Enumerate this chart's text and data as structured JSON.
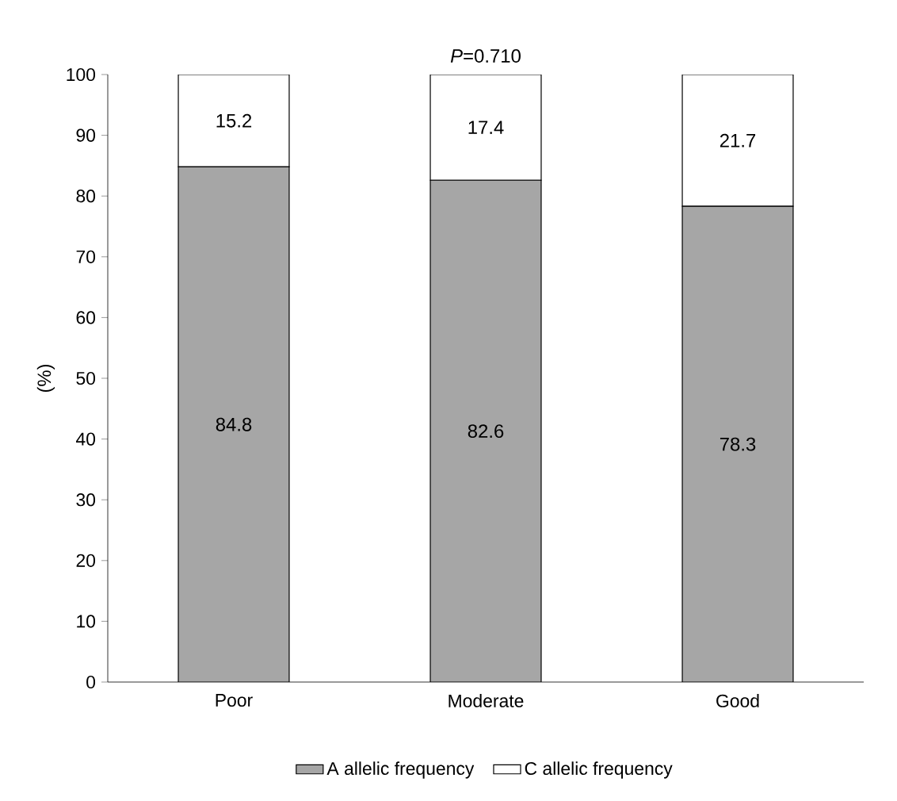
{
  "chart_data": {
    "type": "bar",
    "stacked": true,
    "title": "*P*=0.710",
    "ylabel": "(%)",
    "categories": [
      "Poor",
      "Moderate",
      "Good"
    ],
    "series": [
      {
        "name": "A allelic frequency",
        "color": "#a6a6a6",
        "values": [
          84.8,
          82.6,
          78.3
        ]
      },
      {
        "name": "C allelic frequency",
        "color": "#ffffff",
        "values": [
          15.2,
          17.4,
          21.7
        ]
      }
    ],
    "ylim": [
      0,
      100
    ],
    "yticks": [
      0,
      10,
      20,
      30,
      40,
      50,
      60,
      70,
      80,
      90,
      100
    ],
    "data_labels": true,
    "legend": "bottom",
    "grid": false
  }
}
